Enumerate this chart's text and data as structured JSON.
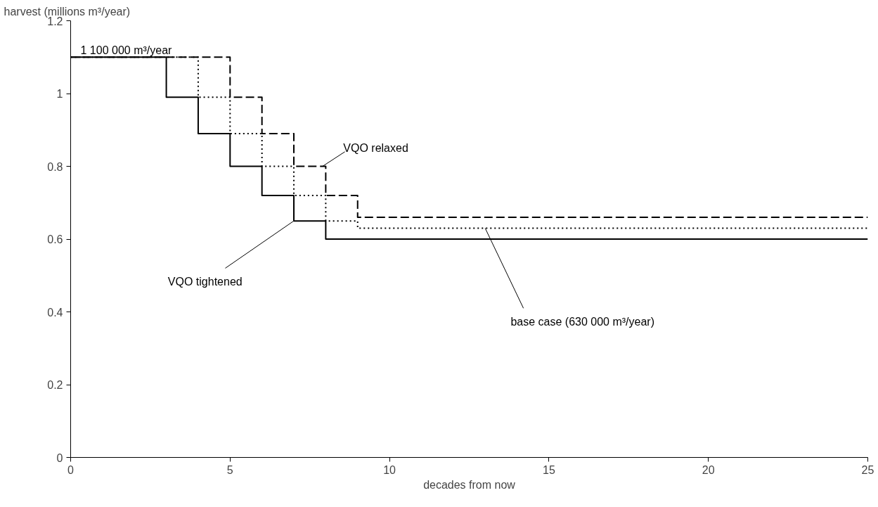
{
  "chart_data": {
    "type": "step",
    "ylabel": "harvest (millions m³/year)",
    "xlabel": "decades from now",
    "xlim": [
      0,
      25
    ],
    "xticks": [
      0,
      5,
      10,
      15,
      20,
      25
    ],
    "ylim": [
      0,
      1.2
    ],
    "yticks": [
      0,
      0.2,
      0.4,
      0.6,
      0.8,
      1,
      1.2
    ],
    "grid": false,
    "color": "#000000",
    "series": [
      {
        "name": "VQO tightened",
        "line_style": "solid",
        "x": [
          0,
          3,
          4,
          5,
          6,
          7,
          8,
          25
        ],
        "values": [
          1.1,
          0.99,
          0.89,
          0.8,
          0.72,
          0.65,
          0.6,
          0.6
        ]
      },
      {
        "name": "base case (630 000 m³/year)",
        "line_style": "dotted",
        "x": [
          0,
          4,
          5,
          6,
          7,
          8,
          9,
          25
        ],
        "values": [
          1.1,
          0.99,
          0.89,
          0.8,
          0.72,
          0.65,
          0.63,
          0.63
        ]
      },
      {
        "name": "VQO relaxed",
        "line_style": "dashed",
        "x": [
          0,
          5,
          6,
          7,
          8,
          9,
          25
        ],
        "values": [
          1.1,
          0.99,
          0.89,
          0.8,
          0.72,
          0.66,
          0.66
        ]
      }
    ],
    "annotations": [
      {
        "text": "1 100 000 m³/year",
        "x": 0,
        "y": 1.1
      }
    ]
  }
}
